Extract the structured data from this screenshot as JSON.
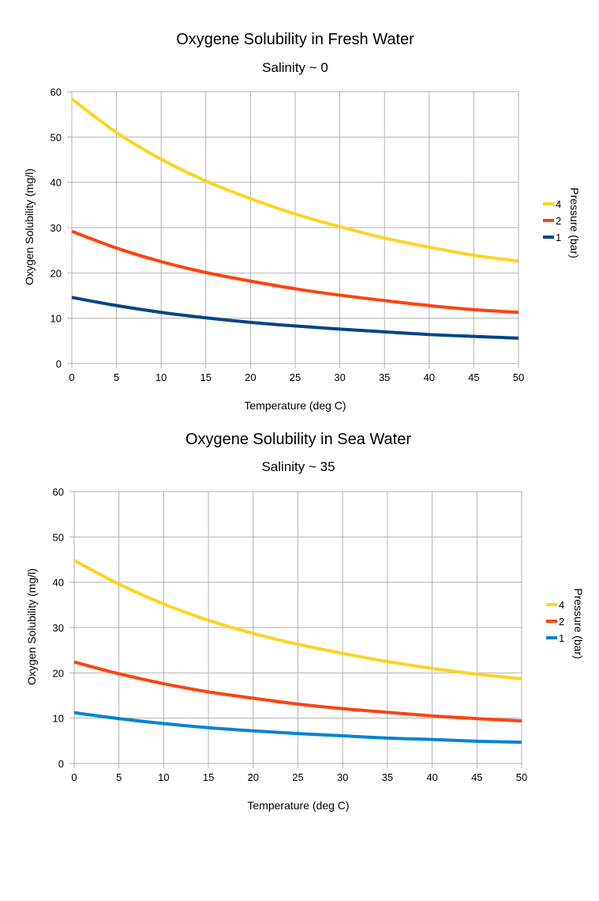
{
  "chart_data": [
    {
      "type": "line",
      "title": "Oxygene Solubility in Fresh Water",
      "subtitle": "Salinity ~ 0",
      "xlabel": "Temperature (deg C)",
      "ylabel": "Oxygen Solubility (mg/l)",
      "xlim": [
        0,
        50
      ],
      "ylim": [
        0,
        60
      ],
      "x_ticks": [
        "0",
        "5",
        "10",
        "15",
        "20",
        "25",
        "30",
        "35",
        "40",
        "45",
        "50"
      ],
      "y_ticks": [
        "0",
        "10",
        "20",
        "30",
        "40",
        "50",
        "60"
      ],
      "grid": true,
      "legend_title": "Pressure (bar)",
      "legend_position": "right",
      "x": [
        0,
        5,
        10,
        15,
        20,
        25,
        30,
        35,
        40,
        45,
        50
      ],
      "series": [
        {
          "name": "4",
          "color": "#ffd320",
          "values": [
            58.4,
            51.0,
            45.1,
            40.3,
            36.4,
            33.0,
            30.2,
            27.7,
            25.7,
            23.9,
            22.6
          ]
        },
        {
          "name": "2",
          "color": "#ff420e",
          "values": [
            29.2,
            25.5,
            22.5,
            20.1,
            18.2,
            16.5,
            15.1,
            13.9,
            12.8,
            11.9,
            11.3
          ]
        },
        {
          "name": "1",
          "color": "#004586",
          "values": [
            14.6,
            12.8,
            11.3,
            10.1,
            9.1,
            8.3,
            7.6,
            7.0,
            6.4,
            6.0,
            5.6
          ]
        }
      ]
    },
    {
      "type": "line",
      "title": "Oxygene Solubility in Sea Water",
      "subtitle": "Salinity ~ 35",
      "xlabel": "Temperature (deg C)",
      "ylabel": "Oxygen Solubility (mg/l)",
      "xlim": [
        0,
        50
      ],
      "ylim": [
        0,
        60
      ],
      "x_ticks": [
        "0",
        "5",
        "10",
        "15",
        "20",
        "25",
        "30",
        "35",
        "40",
        "45",
        "50"
      ],
      "y_ticks": [
        "0",
        "10",
        "20",
        "30",
        "40",
        "50",
        "60"
      ],
      "grid": true,
      "legend_title": "Pressure (bar)",
      "legend_position": "right",
      "x": [
        0,
        5,
        10,
        15,
        20,
        25,
        30,
        35,
        40,
        45,
        50
      ],
      "series": [
        {
          "name": "4",
          "color": "#ffd320",
          "values": [
            44.8,
            39.6,
            35.2,
            31.6,
            28.7,
            26.3,
            24.3,
            22.5,
            21.0,
            19.7,
            18.7
          ]
        },
        {
          "name": "2",
          "color": "#ff420e",
          "values": [
            22.4,
            19.8,
            17.6,
            15.8,
            14.4,
            13.1,
            12.1,
            11.3,
            10.5,
            9.9,
            9.4
          ]
        },
        {
          "name": "1",
          "color": "#0084d1",
          "values": [
            11.2,
            9.9,
            8.8,
            7.9,
            7.2,
            6.6,
            6.1,
            5.6,
            5.3,
            4.9,
            4.7
          ]
        }
      ]
    }
  ]
}
